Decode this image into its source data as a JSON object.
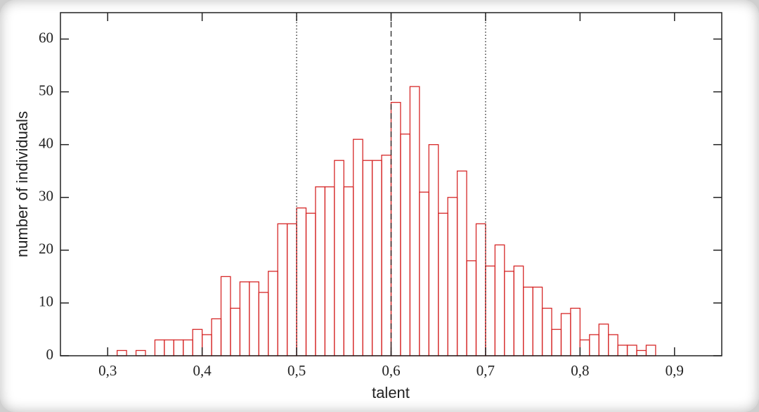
{
  "chart_data": {
    "type": "histogram",
    "xlabel": "talent",
    "ylabel": "number of individuals",
    "bins": [
      0.31,
      0.32,
      0.33,
      0.34,
      0.35,
      0.36,
      0.37,
      0.38,
      0.39,
      0.4,
      0.41,
      0.42,
      0.43,
      0.44,
      0.45,
      0.46,
      0.47,
      0.48,
      0.49,
      0.5,
      0.51,
      0.52,
      0.53,
      0.54,
      0.55,
      0.56,
      0.57,
      0.58,
      0.59,
      0.6,
      0.61,
      0.62,
      0.63,
      0.64,
      0.65,
      0.66,
      0.67,
      0.68,
      0.69,
      0.7,
      0.71,
      0.72,
      0.73,
      0.74,
      0.75,
      0.76,
      0.77,
      0.78,
      0.79,
      0.8,
      0.81,
      0.82,
      0.83,
      0.84,
      0.85,
      0.86,
      0.87,
      0.88
    ],
    "values": [
      1,
      0,
      1,
      0,
      3,
      3,
      3,
      3,
      5,
      4,
      7,
      15,
      9,
      14,
      14,
      12,
      16,
      25,
      25,
      28,
      27,
      32,
      32,
      37,
      32,
      41,
      37,
      37,
      38,
      48,
      42,
      51,
      31,
      40,
      27,
      30,
      35,
      18,
      25,
      17,
      21,
      16,
      17,
      13,
      13,
      9,
      5,
      8,
      9,
      3,
      4,
      6,
      4,
      2,
      2,
      1,
      2
    ],
    "color": "#d62828",
    "xlim": [
      0.25,
      0.95
    ],
    "xticks": [
      {
        "value": 0.3,
        "label": "0,3"
      },
      {
        "value": 0.4,
        "label": "0,4"
      },
      {
        "value": 0.5,
        "label": "0,5"
      },
      {
        "value": 0.6,
        "label": "0,6"
      },
      {
        "value": 0.7,
        "label": "0,7"
      },
      {
        "value": 0.8,
        "label": "0,8"
      },
      {
        "value": 0.9,
        "label": "0,9"
      }
    ],
    "ylim": [
      0,
      65
    ],
    "yticks": [
      0,
      10,
      20,
      30,
      40,
      50,
      60
    ],
    "vlines": [
      {
        "value": 0.5,
        "style": "dotted"
      },
      {
        "value": 0.6,
        "style": "dashed"
      },
      {
        "value": 0.7,
        "style": "dotted"
      }
    ]
  }
}
